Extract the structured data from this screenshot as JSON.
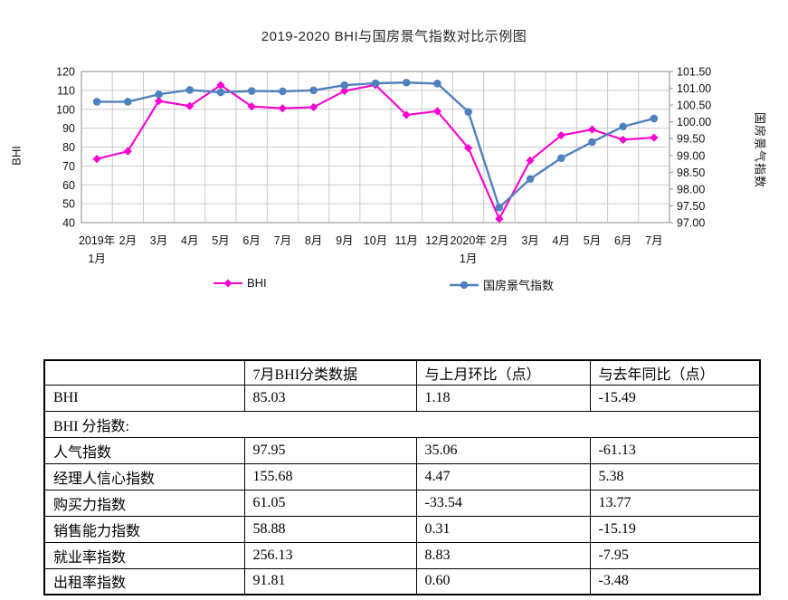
{
  "chart_data": {
    "type": "line",
    "title": "2019-2020 BHI与国房景气指数对比示例图",
    "categories": [
      "2019年1月",
      "2月",
      "3月",
      "4月",
      "5月",
      "6月",
      "7月",
      "8月",
      "9月",
      "10月",
      "11月",
      "12月",
      "2020年1月",
      "2月",
      "3月",
      "4月",
      "5月",
      "6月",
      "7月"
    ],
    "tick_labels": [
      [
        "2019年",
        "1月"
      ],
      [
        "2月"
      ],
      [
        "3月"
      ],
      [
        "4月"
      ],
      [
        "5月"
      ],
      [
        "6月"
      ],
      [
        "7月"
      ],
      [
        "8月"
      ],
      [
        "9月"
      ],
      [
        "10月"
      ],
      [
        "11月"
      ],
      [
        "12月"
      ],
      [
        "2020年",
        "1月"
      ],
      [
        "2月"
      ],
      [
        "3月"
      ],
      [
        "4月"
      ],
      [
        "5月"
      ],
      [
        "6月"
      ],
      [
        "7月"
      ]
    ],
    "series": [
      {
        "name": "BHI",
        "axis": "left",
        "marker": "diamond",
        "values": [
          73.7,
          77.8,
          104.4,
          101.7,
          112.8,
          101.5,
          100.5,
          101.1,
          109.7,
          112.9,
          97.0,
          99.0,
          79.5,
          42.0,
          72.9,
          86.2,
          89.3,
          83.9,
          85.0
        ]
      },
      {
        "name": "国房景气指数",
        "axis": "right",
        "marker": "circle",
        "values": [
          100.6,
          100.6,
          100.82,
          100.95,
          100.88,
          100.92,
          100.91,
          100.94,
          101.09,
          101.15,
          101.17,
          101.14,
          100.3,
          97.45,
          98.3,
          98.92,
          99.4,
          99.86,
          100.1
        ]
      }
    ],
    "left_axis": {
      "label": "BHI",
      "min": 40,
      "max": 120,
      "step": 10
    },
    "right_axis": {
      "label": "国房景气指数",
      "min": 97.0,
      "max": 101.5,
      "step": 0.5
    },
    "grid": true,
    "legend_position": "bottom"
  },
  "colors": {
    "bhi_line": "#FB00D1",
    "gfi_line": "#4F81BD",
    "grid": "#C9C9C9",
    "plot_border": "#A3A3A3",
    "axis_text": "#111111"
  },
  "table": {
    "headers": [
      "",
      "7月BHI分类数据",
      "与上月环比（点）",
      "与去年同比（点）"
    ],
    "rows": [
      {
        "label": "BHI",
        "span": false,
        "cells": [
          "85.03",
          "1.18",
          "-15.49"
        ]
      },
      {
        "label": "BHI 分指数:",
        "span": true,
        "cells": []
      },
      {
        "label": "人气指数",
        "span": false,
        "cells": [
          "97.95",
          "35.06",
          "-61.13"
        ]
      },
      {
        "label": "经理人信心指数",
        "span": false,
        "cells": [
          "155.68",
          "4.47",
          "5.38"
        ]
      },
      {
        "label": "购买力指数",
        "span": false,
        "cells": [
          "61.05",
          "-33.54",
          "13.77"
        ]
      },
      {
        "label": "销售能力指数",
        "span": false,
        "cells": [
          "58.88",
          "0.31",
          "-15.19"
        ]
      },
      {
        "label": "就业率指数",
        "span": false,
        "cells": [
          "256.13",
          "8.83",
          "-7.95"
        ]
      },
      {
        "label": "出租率指数",
        "span": false,
        "cells": [
          "91.81",
          "0.60",
          "-3.48"
        ]
      }
    ]
  }
}
